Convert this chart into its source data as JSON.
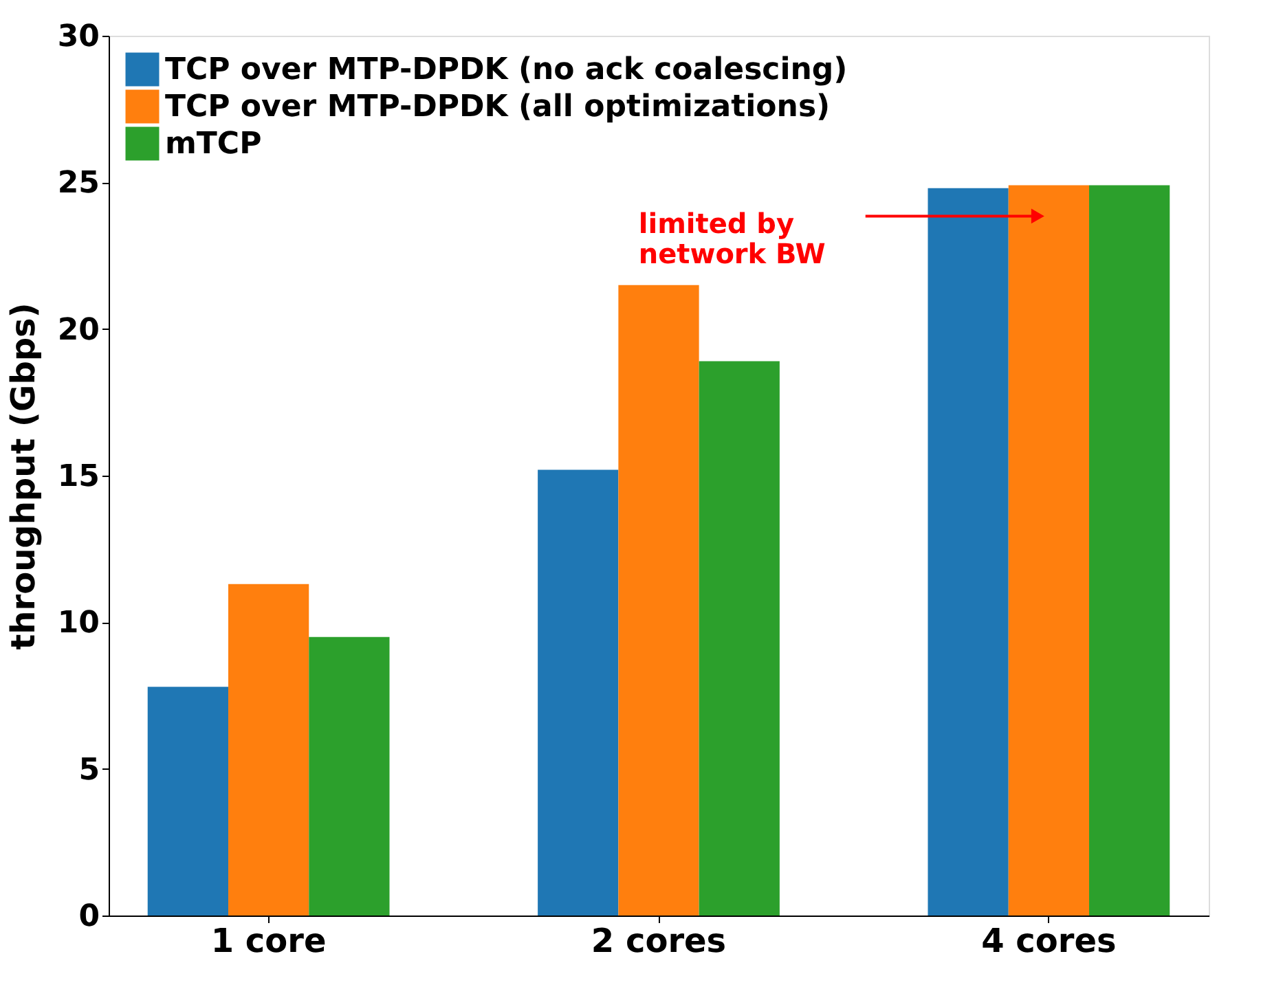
{
  "chart_data": {
    "type": "bar",
    "ylabel": "throughput (Gbps)",
    "categories": [
      "1 core",
      "2 cores",
      "4 cores"
    ],
    "series": [
      {
        "name": "TCP over MTP-DPDK (no ack coalescing)",
        "color": "#1f77b4",
        "values": [
          7.8,
          15.2,
          24.8
        ]
      },
      {
        "name": "TCP over MTP-DPDK (all optimizations)",
        "color": "#ff7f0e",
        "values": [
          11.3,
          21.5,
          24.9
        ]
      },
      {
        "name": "mTCP",
        "color": "#2ca02c",
        "values": [
          9.5,
          18.9,
          24.9
        ]
      }
    ],
    "ylim": [
      0,
      30
    ],
    "yticks": [
      0,
      5,
      10,
      15,
      20,
      25,
      30
    ],
    "legend": "top left",
    "annotations": [
      "limited by\nnetwork BW"
    ]
  }
}
